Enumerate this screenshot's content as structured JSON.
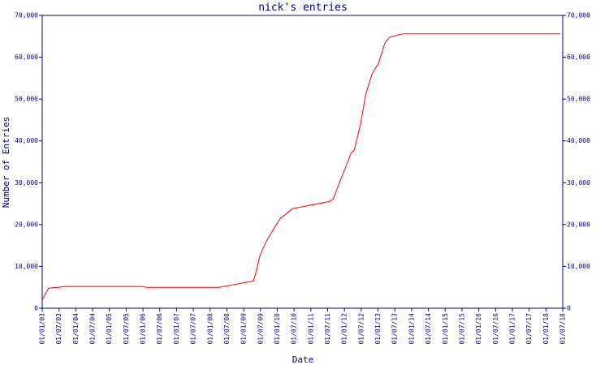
{
  "chart_data": {
    "type": "line",
    "title": "nick's entries",
    "x_label": "Date",
    "y_label": "Number of Entries",
    "xlim": [
      2003,
      2018.5
    ],
    "ylim": [
      0,
      70000
    ],
    "xticks": [
      {
        "value": 2003,
        "label": "01/01/03"
      },
      {
        "value": 2003.5,
        "label": "01/07/03"
      },
      {
        "value": 2004,
        "label": "01/01/04"
      },
      {
        "value": 2004.5,
        "label": "01/07/04"
      },
      {
        "value": 2005,
        "label": "01/01/05"
      },
      {
        "value": 2005.5,
        "label": "01/07/05"
      },
      {
        "value": 2006,
        "label": "01/01/06"
      },
      {
        "value": 2006.5,
        "label": "01/07/06"
      },
      {
        "value": 2007,
        "label": "01/01/07"
      },
      {
        "value": 2007.5,
        "label": "01/07/07"
      },
      {
        "value": 2008,
        "label": "01/01/08"
      },
      {
        "value": 2008.5,
        "label": "01/07/08"
      },
      {
        "value": 2009,
        "label": "01/01/09"
      },
      {
        "value": 2009.5,
        "label": "01/07/09"
      },
      {
        "value": 2010,
        "label": "01/01/10"
      },
      {
        "value": 2010.5,
        "label": "01/07/10"
      },
      {
        "value": 2011,
        "label": "01/01/11"
      },
      {
        "value": 2011.5,
        "label": "01/07/11"
      },
      {
        "value": 2012,
        "label": "01/01/12"
      },
      {
        "value": 2012.5,
        "label": "01/07/12"
      },
      {
        "value": 2013,
        "label": "01/01/13"
      },
      {
        "value": 2013.5,
        "label": "01/07/13"
      },
      {
        "value": 2014,
        "label": "01/01/14"
      },
      {
        "value": 2014.5,
        "label": "01/07/14"
      },
      {
        "value": 2015,
        "label": "01/01/15"
      },
      {
        "value": 2015.5,
        "label": "01/07/15"
      },
      {
        "value": 2016,
        "label": "01/01/16"
      },
      {
        "value": 2016.5,
        "label": "01/07/16"
      },
      {
        "value": 2017,
        "label": "01/01/17"
      },
      {
        "value": 2017.5,
        "label": "01/07/17"
      },
      {
        "value": 2018,
        "label": "01/01/18"
      },
      {
        "value": 2018.5,
        "label": "01/07/18"
      }
    ],
    "yticks": [
      0,
      {
        "value": 10000,
        "label": "10,000"
      },
      {
        "value": 20000,
        "label": "20,000"
      },
      {
        "value": 30000,
        "label": "30,000"
      },
      {
        "value": 40000,
        "label": "40,000"
      },
      {
        "value": 50000,
        "label": "50,000"
      },
      {
        "value": 60000,
        "label": "60,000"
      },
      {
        "value": 70000,
        "label": "70,000"
      }
    ],
    "axis_color": "#000080",
    "series": [
      {
        "color": "#ff0000",
        "x": [
          2003.0,
          2003.19,
          2003.48,
          2003.68,
          2005.97,
          2006.1,
          2008.27,
          2009.29,
          2009.38,
          2009.48,
          2009.67,
          2009.96,
          2010.09,
          2010.26,
          2010.45,
          2011.54,
          2011.66,
          2011.9,
          2012.1,
          2012.19,
          2012.29,
          2012.48,
          2012.63,
          2012.82,
          2013.01,
          2013.21,
          2013.35,
          2013.59,
          2013.76,
          2018.43
        ],
        "values": [
          2000,
          4800,
          5000,
          5200,
          5200,
          5000,
          5000,
          6500,
          9000,
          12500,
          16000,
          19800,
          21500,
          22500,
          23800,
          25500,
          26000,
          31000,
          35000,
          37000,
          37800,
          44000,
          51000,
          56000,
          58500,
          63500,
          64800,
          65300,
          65600,
          65600
        ]
      }
    ]
  }
}
